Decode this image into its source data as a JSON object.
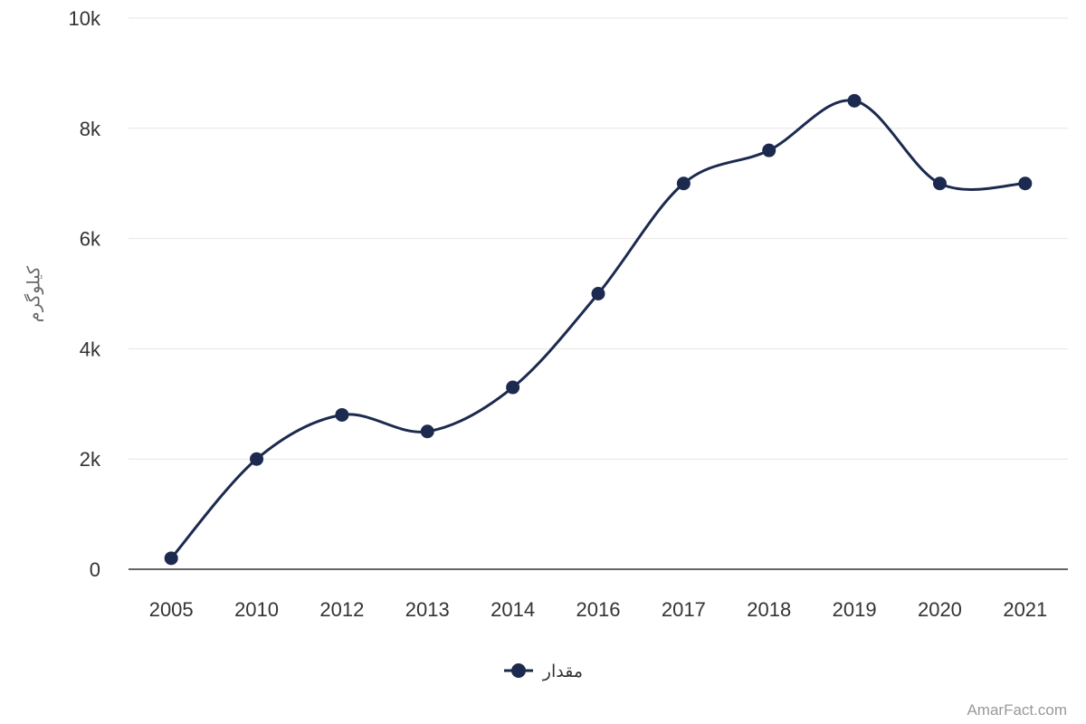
{
  "chart_data": {
    "type": "line",
    "x": [
      "2005",
      "2010",
      "2012",
      "2013",
      "2014",
      "2016",
      "2017",
      "2018",
      "2019",
      "2020",
      "2021"
    ],
    "series": [
      {
        "name": "مقدار",
        "values": [
          200,
          2000,
          2800,
          2500,
          3300,
          5000,
          7000,
          7600,
          8500,
          7000,
          7000
        ]
      }
    ],
    "ylabel": "کیلوگرم",
    "ylim": [
      0,
      10000
    ],
    "yticks": [
      {
        "value": 0,
        "label": "0"
      },
      {
        "value": 2000,
        "label": "2k"
      },
      {
        "value": 4000,
        "label": "4k"
      },
      {
        "value": 6000,
        "label": "6k"
      },
      {
        "value": 8000,
        "label": "8k"
      },
      {
        "value": 10000,
        "label": "10k"
      }
    ],
    "grid": true,
    "legend_position": "bottom-center",
    "line_style": "smooth",
    "colors": {
      "series": "#1b2a4e",
      "grid": "#e6e6e6",
      "axis": "#333333",
      "tick_text": "#333333",
      "ylabel_text": "#666666",
      "watermark": "#999999"
    }
  },
  "watermark": "AmarFact.com"
}
